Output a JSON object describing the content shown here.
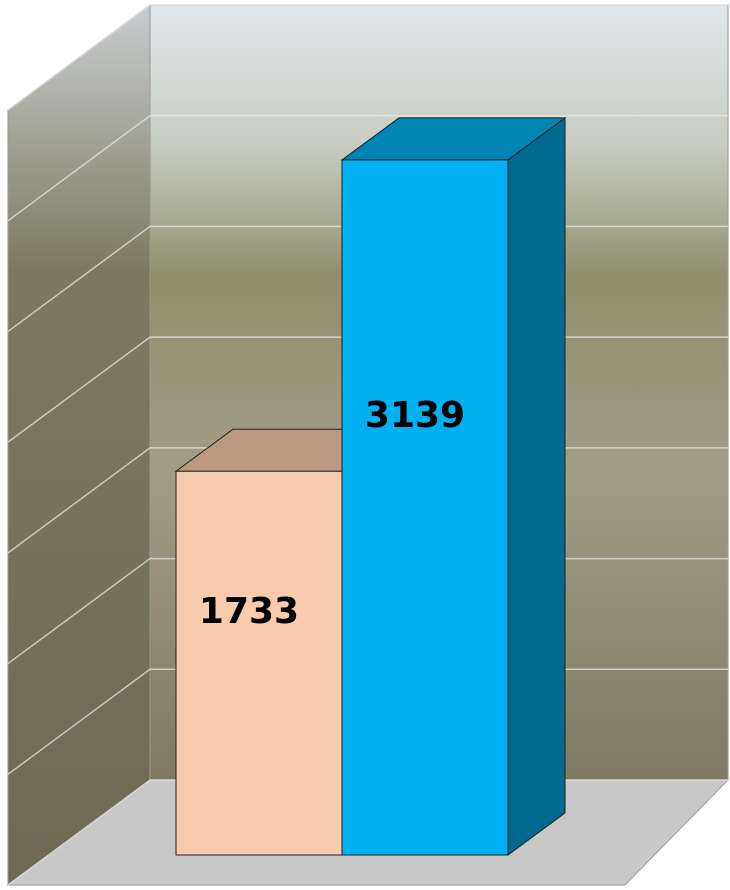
{
  "chart_data": {
    "type": "bar3d",
    "values": [
      1733,
      3139
    ],
    "colors": [
      "#f8cbad",
      "#00b0f0"
    ],
    "ylim": [
      0,
      3500
    ],
    "yticks": [
      0,
      500,
      1000,
      1500,
      2000,
      2500,
      3000,
      3500
    ],
    "grid": true
  }
}
